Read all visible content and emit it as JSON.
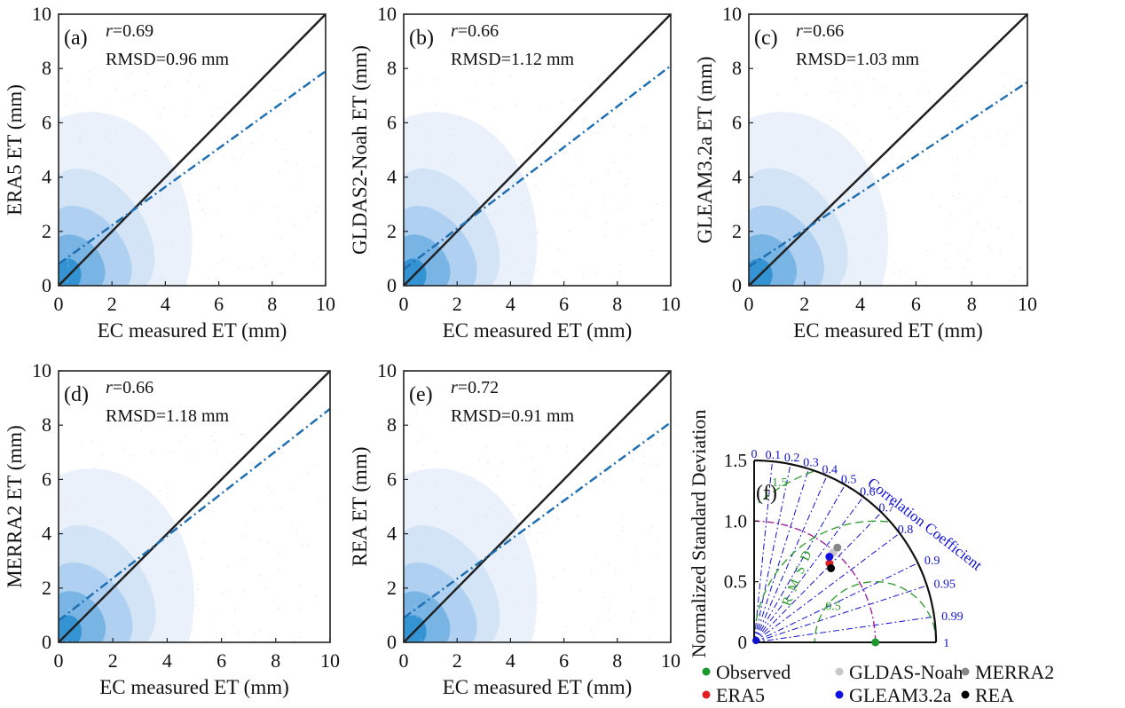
{
  "chart_data": [
    {
      "type": "scatter",
      "panel_label": "(a)",
      "r_label": "r",
      "r_value": "=0.69",
      "rmsd_text": "RMSD=0.96 mm",
      "xlabel": "EC measured ET (mm)",
      "ylabel": "ERA5 ET (mm)",
      "xlim": [
        0,
        10
      ],
      "ylim": [
        0,
        10
      ],
      "xticks": [
        "0",
        "2",
        "4",
        "6",
        "8",
        "10"
      ],
      "yticks": [
        "0",
        "2",
        "4",
        "6",
        "8",
        "10"
      ],
      "fit_line": {
        "intercept": 0.8,
        "slope": 0.71
      },
      "one_to_one": true
    },
    {
      "type": "scatter",
      "panel_label": "(b)",
      "r_label": "r",
      "r_value": "=0.66",
      "rmsd_text": "RMSD=1.12 mm",
      "xlabel": "EC measured ET (mm)",
      "ylabel": "GLDAS2-Noah ET (mm)",
      "xlim": [
        0,
        10
      ],
      "ylim": [
        0,
        10
      ],
      "xticks": [
        "0",
        "2",
        "4",
        "6",
        "8",
        "10"
      ],
      "yticks": [
        "0",
        "2",
        "4",
        "6",
        "8",
        "10"
      ],
      "fit_line": {
        "intercept": 0.6,
        "slope": 0.75
      },
      "one_to_one": true
    },
    {
      "type": "scatter",
      "panel_label": "(c)",
      "r_label": "r",
      "r_value": "=0.66",
      "rmsd_text": "RMSD=1.03 mm",
      "xlabel": "EC measured ET (mm)",
      "ylabel": "GLEAM3.2a ET (mm)",
      "xlim": [
        0,
        10
      ],
      "ylim": [
        0,
        10
      ],
      "xticks": [
        "0",
        "2",
        "4",
        "6",
        "8",
        "10"
      ],
      "yticks": [
        "0",
        "2",
        "4",
        "6",
        "8",
        "10"
      ],
      "fit_line": {
        "intercept": 0.7,
        "slope": 0.68
      },
      "one_to_one": true
    },
    {
      "type": "scatter",
      "panel_label": "(d)",
      "r_label": "r",
      "r_value": "=0.66",
      "rmsd_text": "RMSD=1.18 mm",
      "xlabel": "EC measured ET (mm)",
      "ylabel": "MERRA2 ET (mm)",
      "xlim": [
        0,
        10
      ],
      "ylim": [
        0,
        10
      ],
      "xticks": [
        "0",
        "2",
        "4",
        "6",
        "8",
        "10"
      ],
      "yticks": [
        "0",
        "2",
        "4",
        "6",
        "8",
        "10"
      ],
      "fit_line": {
        "intercept": 0.8,
        "slope": 0.78
      },
      "one_to_one": true
    },
    {
      "type": "scatter",
      "panel_label": "(e)",
      "r_label": "r",
      "r_value": "=0.72",
      "rmsd_text": "RMSD=0.91 mm",
      "xlabel": "EC measured ET (mm)",
      "ylabel": "REA ET (mm)",
      "xlim": [
        0,
        10
      ],
      "ylim": [
        0,
        10
      ],
      "xticks": [
        "0",
        "2",
        "4",
        "6",
        "8",
        "10"
      ],
      "yticks": [
        "0",
        "2",
        "4",
        "6",
        "8",
        "10"
      ],
      "fit_line": {
        "intercept": 0.9,
        "slope": 0.72
      },
      "one_to_one": true
    },
    {
      "type": "taylor",
      "panel_label": "(f)",
      "ylabel": "Normalized Standard Deviation",
      "correlation_label": "Correlation Coefficient",
      "rmsd_label": "R M S D",
      "std_ticks": [
        0,
        0.5,
        1.0,
        1.5
      ],
      "std_tick_labels": [
        "0",
        "0.5",
        "1.0",
        "1.5"
      ],
      "corr_ticks": [
        0,
        0.1,
        0.2,
        0.3,
        0.4,
        0.5,
        0.6,
        0.7,
        0.8,
        0.9,
        0.95,
        0.99,
        1
      ],
      "corr_tick_labels": [
        "0",
        "0.1",
        "0.2",
        "0.3",
        "0.4",
        "0.5",
        "0.6",
        "0.7",
        "0.8",
        "0.9",
        "0.95",
        "0.99",
        "1"
      ],
      "rmsd_arc_labels": [
        "0.5",
        "1.5"
      ],
      "points": [
        {
          "name": "Observed",
          "std": 1.0,
          "corr": 1.0,
          "color": "#1a9a2a"
        },
        {
          "name": "GLDAS-Noah",
          "std": 0.98,
          "corr": 0.66,
          "color": "#c8c8c8"
        },
        {
          "name": "MERRA2",
          "std": 1.04,
          "corr": 0.66,
          "color": "#888888"
        },
        {
          "name": "ERA5",
          "std": 0.9,
          "corr": 0.69,
          "color": "#e02020"
        },
        {
          "name": "GLEAM3.2a",
          "std": 0.94,
          "corr": 0.66,
          "color": "#1010e0"
        },
        {
          "name": "REA",
          "std": 0.88,
          "corr": 0.72,
          "color": "#000000"
        }
      ]
    }
  ],
  "legend": [
    {
      "name": "Observed",
      "color": "#1a9a2a"
    },
    {
      "name": "GLDAS-Noah",
      "color": "#c8c8c8"
    },
    {
      "name": "MERRA2",
      "color": "#888888"
    },
    {
      "name": "ERA5",
      "color": "#e02020"
    },
    {
      "name": "GLEAM3.2a",
      "color": "#1010e0"
    },
    {
      "name": "REA",
      "color": "#000000"
    }
  ],
  "colors": {
    "fit_line": "#1f6fb2",
    "density_dark": "#2b8fd0",
    "density_light": "#e8f0fb",
    "taylor_grid": "#1010d0",
    "taylor_rmsd": "#2a9a2a",
    "taylor_ref": "#a0209a"
  }
}
